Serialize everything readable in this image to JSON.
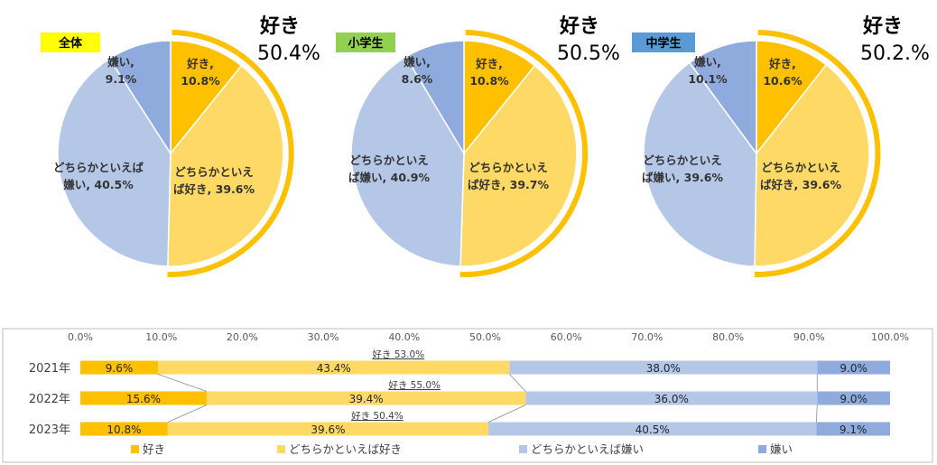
{
  "chart_data": [
    {
      "type": "pie",
      "group_label": "全体",
      "group_color": "#ffff00",
      "summary": {
        "label": "好き",
        "value_text": "50.4%"
      },
      "slices": [
        {
          "name": "好き",
          "value": 10.8,
          "label_lines": [
            "好き,",
            "10.8%"
          ],
          "color": "#ffc000"
        },
        {
          "name": "どちらかといえば好き",
          "value": 39.6,
          "label_lines": [
            "どちらかといえ",
            "ば好き, 39.6%"
          ],
          "color": "#ffd966"
        },
        {
          "name": "どちらかといえば嫌い",
          "value": 40.5,
          "label_lines": [
            "どちらかといえば",
            "嫌い, 40.5%"
          ],
          "color": "#b4c7e7"
        },
        {
          "name": "嫌い",
          "value": 9.1,
          "label_lines": [
            "嫌い,",
            "9.1%"
          ],
          "color": "#8faadc"
        }
      ]
    },
    {
      "type": "pie",
      "group_label": "小学生",
      "group_color": "#92d050",
      "summary": {
        "label": "好き",
        "value_text": "50.5%"
      },
      "slices": [
        {
          "name": "好き",
          "value": 10.8,
          "label_lines": [
            "好き,",
            "10.8%"
          ],
          "color": "#ffc000"
        },
        {
          "name": "どちらかといえば好き",
          "value": 39.7,
          "label_lines": [
            "どちらかといえ",
            "ば好き, 39.7%"
          ],
          "color": "#ffd966"
        },
        {
          "name": "どちらかといえば嫌い",
          "value": 40.9,
          "label_lines": [
            "どちらかといえ",
            "ば嫌い, 40.9%"
          ],
          "color": "#b4c7e7"
        },
        {
          "name": "嫌い",
          "value": 8.6,
          "label_lines": [
            "嫌い,",
            "8.6%"
          ],
          "color": "#8faadc"
        }
      ]
    },
    {
      "type": "pie",
      "group_label": "中学生",
      "group_color": "#5b9bd5",
      "summary": {
        "label": "好き",
        "value_text": "50.2.%"
      },
      "slices": [
        {
          "name": "好き",
          "value": 10.6,
          "label_lines": [
            "好き,",
            "10.6%"
          ],
          "color": "#ffc000"
        },
        {
          "name": "どちらかといえば好き",
          "value": 39.6,
          "label_lines": [
            "どちらかといえ",
            "ば好き, 39.6%"
          ],
          "color": "#ffd966"
        },
        {
          "name": "どちらかといえば嫌い",
          "value": 39.6,
          "label_lines": [
            "どちらかといえ",
            "ば嫌い, 39.6%"
          ],
          "color": "#b4c7e7"
        },
        {
          "name": "嫌い",
          "value": 10.1,
          "label_lines": [
            "嫌い,",
            "10.1%"
          ],
          "color": "#8faadc"
        }
      ]
    },
    {
      "type": "bar",
      "orientation": "horizontal",
      "stacked": true,
      "categories": [
        "2021年",
        "2022年",
        "2023年"
      ],
      "x_ticks": [
        "0.0%",
        "10.0%",
        "20.0%",
        "30.0%",
        "40.0%",
        "50.0%",
        "60.0%",
        "70.0%",
        "80.0%",
        "90.0%",
        "100.0%"
      ],
      "xlim": [
        0,
        100
      ],
      "series": [
        {
          "name": "好き",
          "color": "#ffc000",
          "values": [
            9.6,
            15.6,
            10.8
          ],
          "labels": [
            "9.6%",
            "15.6%",
            "10.8%"
          ]
        },
        {
          "name": "どちらかといえば好き",
          "color": "#ffd966",
          "values": [
            43.4,
            39.4,
            39.6
          ],
          "labels": [
            "43.4%",
            "39.4%",
            "39.6%"
          ]
        },
        {
          "name": "どちらかといえば嫌い",
          "color": "#b4c7e7",
          "values": [
            38.0,
            36.0,
            40.5
          ],
          "labels": [
            "38.0%",
            "36.0%",
            "40.5%"
          ]
        },
        {
          "name": "嫌い",
          "color": "#8faadc",
          "values": [
            9.0,
            9.0,
            9.1
          ],
          "labels": [
            "9.0%",
            "9.0%",
            "9.1%"
          ]
        }
      ],
      "like_totals": [
        "好き 53.0%",
        "好き 55.0%",
        "好き 50.4%"
      ],
      "legend_position": "bottom"
    }
  ]
}
